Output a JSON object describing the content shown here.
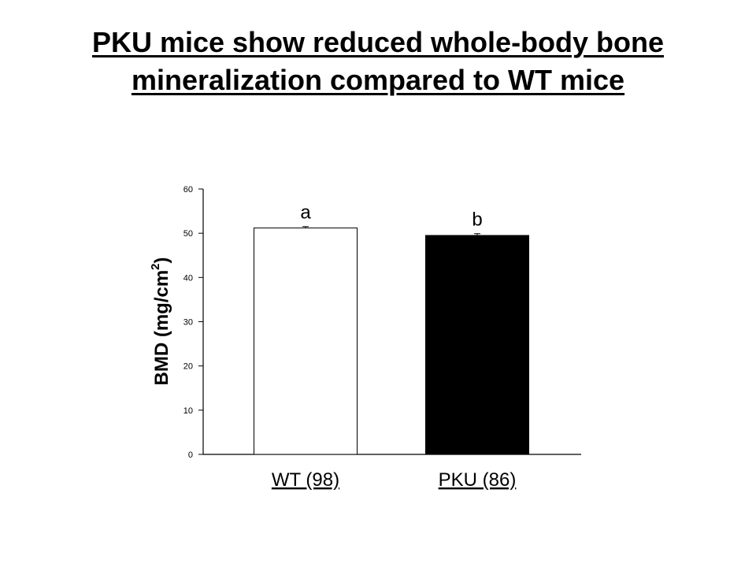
{
  "slide": {
    "title_line1": "PKU mice show reduced whole-body bone",
    "title_line2": "mineralization compared to WT mice"
  },
  "chart_data": {
    "type": "bar",
    "categories": [
      "WT (98)",
      "PKU (86)"
    ],
    "values": [
      51.2,
      49.5
    ],
    "errors": [
      0.3,
      0.4
    ],
    "significance_labels": [
      "a",
      "b"
    ],
    "bar_colors": [
      "#ffffff",
      "#000000"
    ],
    "ylabel_main": "BMD (mg/cm",
    "ylabel_sup": "2",
    "ylabel_close": ")",
    "ylim": [
      0,
      60
    ],
    "yticks": [
      0,
      10,
      20,
      30,
      40,
      50,
      60
    ],
    "grid": false,
    "legend": "none"
  }
}
